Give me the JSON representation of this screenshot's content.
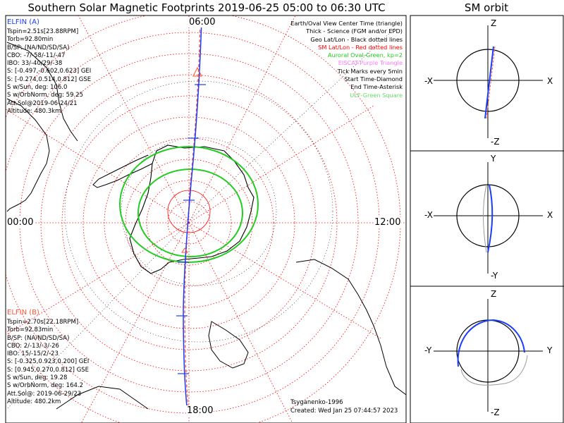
{
  "title": "Southern Solar Magnetic Footprints 2019-06-25 05:00 to 06:30 UTC",
  "sm_orbit_title": "SM orbit",
  "time_labels": {
    "top": "06:00",
    "left": "00:00",
    "right": "12:00",
    "bottom": "18:00"
  },
  "elfin_a": {
    "name": "ELFIN (A)",
    "color": "#1a3cff",
    "lines": [
      "Tspin=2.51s[23.88RPM]",
      "Torb=92.80min",
      "B/SP: (NA/ND/SD/SA)",
      "CBO: -7/-58/-11/-47",
      "IBO: 33/-40/29/-38",
      "S: [-0.497,-0.602,0.623] GEI",
      "S: [-0.274,0.514,0.812] GSE",
      "S w/Sun, deg: 106.0",
      "S w/OrbNorm, deg: 59.25",
      "Att.Sol@2019-06-24/21",
      "Altitude: 480.3km"
    ]
  },
  "elfin_b": {
    "name": "ELFIN (B)",
    "color": "#ff5533",
    "lines": [
      "Tspin=2.70s[22.18RPM]",
      "Torb=92.83min",
      "B/SP: (NA/ND/SD/SA)",
      "CBO: 2/-13/-3/-26",
      "IBO: 15/-15/2/-23",
      "S: [-0.325,0.923,0.200] GEI",
      "S: [0.945,0.270,0.812] GSE",
      "S w/Sun, deg: 19.28",
      "S w/OrbNorm, deg: 164.2",
      "Att.Sol@: 2019-06-29/23",
      "Altitude: 480.2km"
    ]
  },
  "legend": [
    {
      "text": "Earth/Oval View Center Time (triangle)",
      "color": "#000000"
    },
    {
      "text": "Thick - Science (FGM and/or EPD)",
      "color": "#000000"
    },
    {
      "text": "Geo Lat/Lon - Black dotted lines",
      "color": "#000000"
    },
    {
      "text": "SM Lat/Lon - Red dotted lines",
      "color": "#ff0000"
    },
    {
      "text": "Auroral Oval-Green, kp=2",
      "color": "#22cc22"
    },
    {
      "text": "EISCAT-Purple Triangle",
      "color": "#ff77ff"
    },
    {
      "text": "Tick Marks every 5min",
      "color": "#000000"
    },
    {
      "text": "Start Time-Diamond",
      "color": "#000000"
    },
    {
      "text": "End Time-Asterisk",
      "color": "#000000"
    },
    {
      "text": "ULF-Green Square",
      "color": "#66dd66"
    }
  ],
  "model": "Tsyganenko-1996",
  "created": "Created: Wed Jan 25 07:44:57 2023",
  "orbit_panels": [
    {
      "top": "Z",
      "bottom": "-Z",
      "left": "-X",
      "right": "X"
    },
    {
      "top": "Y",
      "bottom": "-Y",
      "left": "-X",
      "right": "X"
    },
    {
      "top": "Z",
      "bottom": "-Z",
      "left": "-Y",
      "right": "Y"
    }
  ],
  "colors": {
    "probe_a": "#1a3cff",
    "probe_b": "#ff5533",
    "oval": "#22cc22",
    "sm_grid": "#ff0000",
    "geo_grid": "#000000"
  }
}
